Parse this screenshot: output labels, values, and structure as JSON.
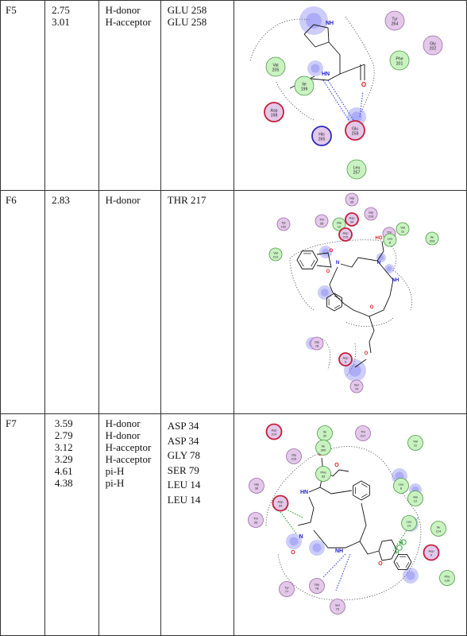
{
  "rows": [
    {
      "id": "F5",
      "distances": [
        "2.75",
        "3.01"
      ],
      "types": [
        "H-donor",
        "H-acceptor"
      ],
      "residues": [
        "GLU  258",
        "GLU  258"
      ],
      "diagram_residues": [
        {
          "name": "Tyr",
          "num": "264",
          "kind": "polar"
        },
        {
          "name": "Gly",
          "num": "202",
          "kind": "polar"
        },
        {
          "name": "Phe",
          "num": "201",
          "kind": "greasy"
        },
        {
          "name": "Val",
          "num": "205",
          "kind": "greasy"
        },
        {
          "name": "Ile",
          "num": "199",
          "kind": "greasy"
        },
        {
          "name": "Asp",
          "num": "198",
          "kind": "acidic"
        },
        {
          "name": "His",
          "num": "265",
          "kind": "basic"
        },
        {
          "name": "Glu",
          "num": "258",
          "kind": "acidic"
        },
        {
          "name": "Leu",
          "num": "257",
          "kind": "greasy"
        }
      ],
      "atom_labels": [
        "NH",
        "HN",
        "O"
      ]
    },
    {
      "id": "F6",
      "distances": [
        "2.83"
      ],
      "types": [
        "H-donor"
      ],
      "residues": [
        "THR  217"
      ],
      "diagram_residues": [
        {
          "name": "Gly",
          "num": "39",
          "kind": "polar"
        },
        {
          "name": "Tyr",
          "num": "192",
          "kind": "polar"
        },
        {
          "name": "Thr",
          "num": "35",
          "kind": "polar"
        },
        {
          "name": "Ala",
          "num": "12",
          "kind": "greasy"
        },
        {
          "name": "Asp",
          "num": "34",
          "kind": "acidic"
        },
        {
          "name": "Gly",
          "num": "216",
          "kind": "polar"
        },
        {
          "name": "Asp",
          "num": "215",
          "kind": "acidic"
        },
        {
          "name": "Val",
          "num": "11",
          "kind": "greasy"
        },
        {
          "name": "Thr",
          "num": "217",
          "kind": "polar"
        },
        {
          "name": "Ile",
          "num": "203",
          "kind": "greasy"
        },
        {
          "name": "Leu",
          "num": "8",
          "kind": "greasy"
        },
        {
          "name": "Val",
          "num": "212",
          "kind": "greasy"
        },
        {
          "name": "Gly",
          "num": "78",
          "kind": "polar"
        },
        {
          "name": "Asp",
          "num": "9",
          "kind": "acidic"
        },
        {
          "name": "Ser",
          "num": "79",
          "kind": "polar"
        }
      ],
      "atom_labels": [
        "HO",
        "N",
        "NH",
        "N",
        "O",
        "O",
        "O",
        "O"
      ]
    },
    {
      "id": "F7",
      "distances": [
        "3.59",
        "2.79",
        "3.12",
        "3.29",
        "4.61",
        "4.38"
      ],
      "types": [
        "H-donor",
        "H-donor",
        "H-acceptor",
        "H-acceptor",
        "pi-H",
        "pi-H"
      ],
      "residues": [
        "ASP  34",
        "ASP  34",
        "GLY  78",
        "SER  79",
        "LEU  14",
        "LEU  14"
      ],
      "diagram_residues": [
        {
          "name": "Asp",
          "num": "214",
          "kind": "acidic"
        },
        {
          "name": "Ile",
          "num": "32",
          "kind": "greasy"
        },
        {
          "name": "Thr",
          "num": "217",
          "kind": "polar"
        },
        {
          "name": "Ile",
          "num": "300",
          "kind": "greasy"
        },
        {
          "name": "Val",
          "num": "11",
          "kind": "greasy"
        },
        {
          "name": "Gly",
          "num": "216",
          "kind": "polar"
        },
        {
          "name": "Phe",
          "num": "33",
          "kind": "greasy"
        },
        {
          "name": "Leu",
          "num": "8",
          "kind": "greasy"
        },
        {
          "name": "Gly",
          "num": "36",
          "kind": "polar"
        },
        {
          "name": "Asp",
          "num": "34",
          "kind": "acidic"
        },
        {
          "name": "Ala",
          "num": "12",
          "kind": "greasy"
        },
        {
          "name": "Thr",
          "num": "35",
          "kind": "polar"
        },
        {
          "name": "Leu",
          "num": "14",
          "kind": "greasy"
        },
        {
          "name": "Ile",
          "num": "114",
          "kind": "greasy"
        },
        {
          "name": "Asp",
          "num": "9",
          "kind": "acidic"
        },
        {
          "name": "Phe",
          "num": "120",
          "kind": "greasy"
        },
        {
          "name": "Tyr",
          "num": "77",
          "kind": "polar"
        },
        {
          "name": "Gly",
          "num": "78",
          "kind": "polar"
        },
        {
          "name": "Ser",
          "num": "79",
          "kind": "polar"
        }
      ],
      "atom_labels": [
        "HN",
        "NH",
        "N",
        "O",
        "O",
        "O",
        "O",
        "H",
        "H"
      ]
    }
  ],
  "colors": {
    "polar_fill": "#e3c8ea",
    "polar_stroke": "#9a6aa6",
    "greasy_fill": "#c9f2c1",
    "greasy_stroke": "#4b9a43",
    "acidic_stroke": "#c41f3a",
    "basic_stroke": "#2a2ab8",
    "hbond_blue": "#2f3ee0",
    "hbond_green": "#1f9a28",
    "exposure_blue": "#6f6ff2",
    "oxygen_red": "#e02020",
    "nitrogen_blue": "#2020c8"
  }
}
